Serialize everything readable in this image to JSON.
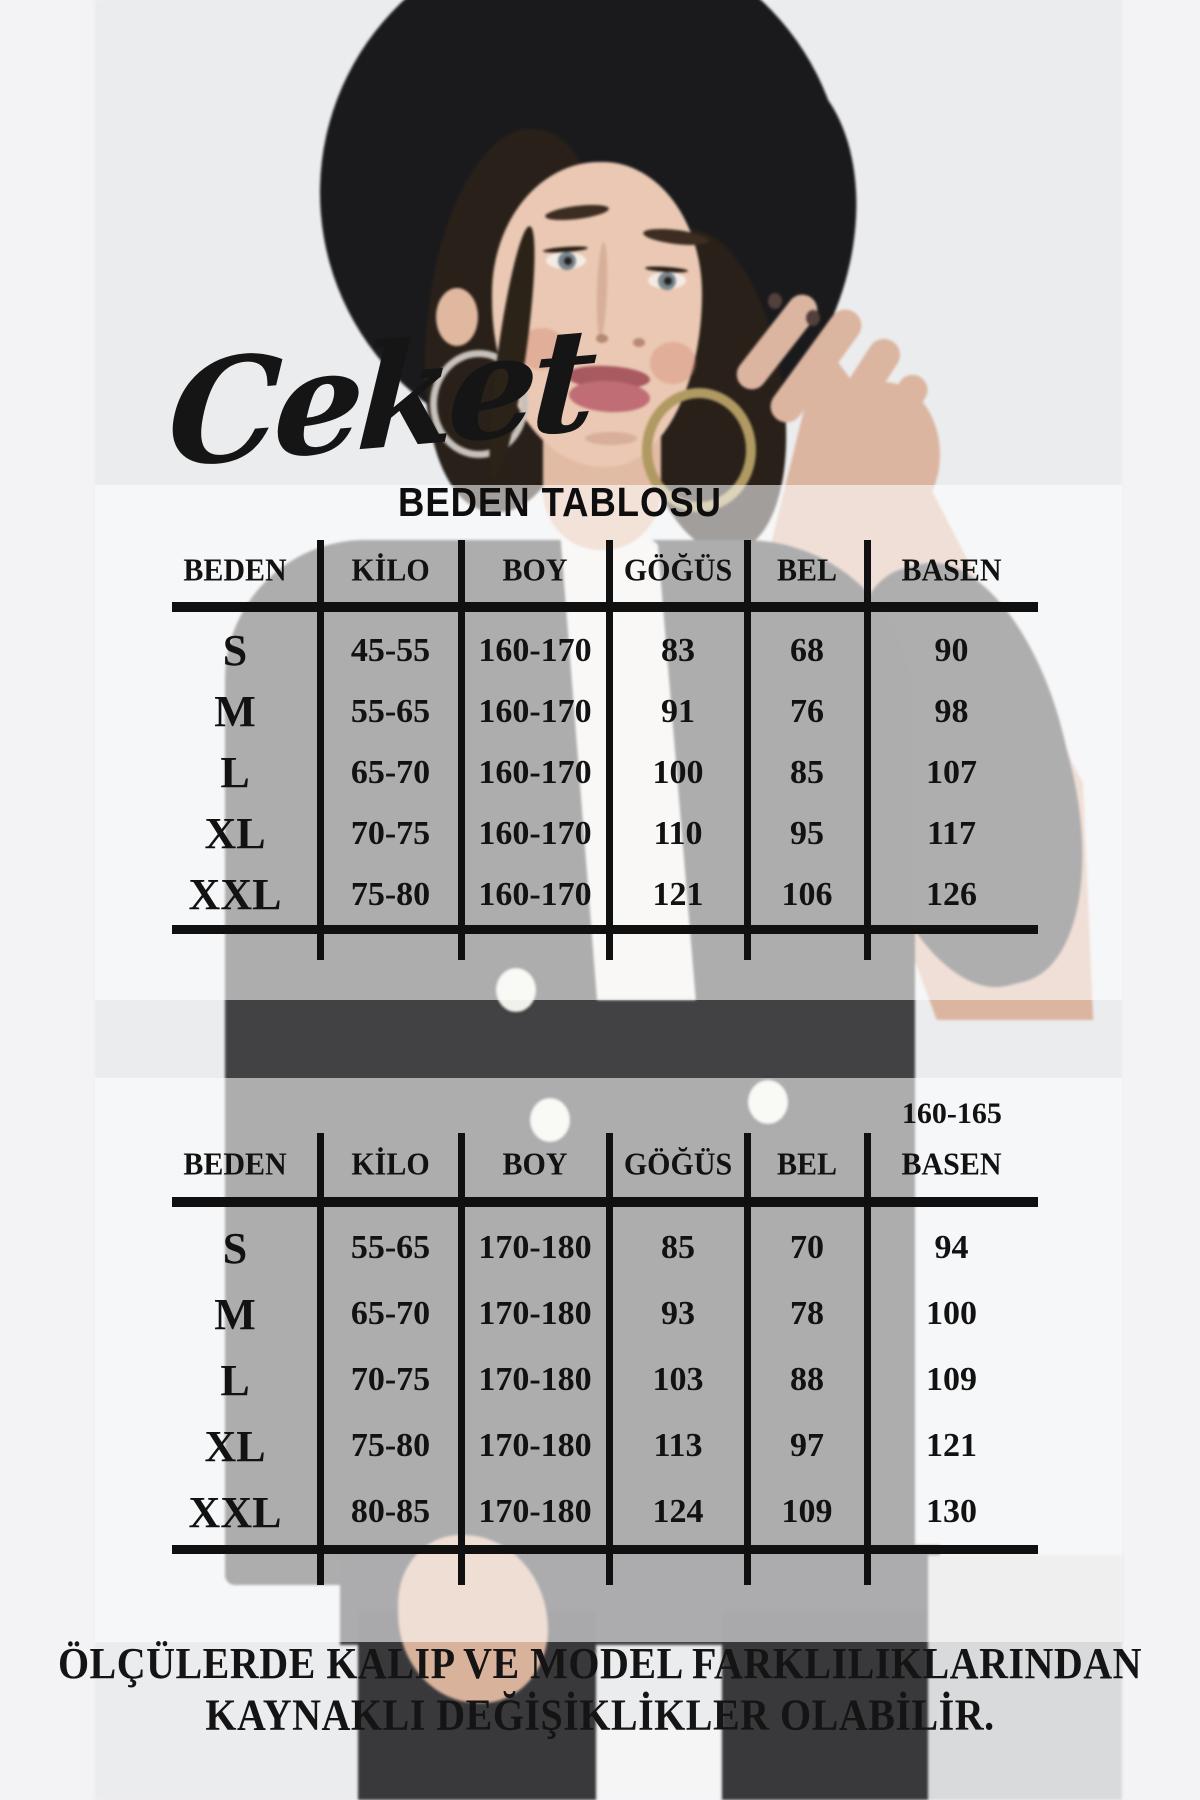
{
  "page": {
    "script_title": "Ceket",
    "main_title": "BEDEN TABLOSU",
    "disclaimer_lines": [
      "ÖLÇÜLERDE KALIP VE MODEL FARKLILIKLARINDAN",
      "KAYNAKLI DEĞİŞİKLİKLER OLABİLİR."
    ]
  },
  "tables": [
    {
      "name": "beden-tablosu-ust",
      "headers": [
        "BEDEN",
        "KİLO",
        "BOY",
        "GÖĞÜS",
        "BEL",
        "BASEN"
      ],
      "rows": [
        [
          "S",
          "45-55",
          "160-170",
          "83",
          "68",
          "90"
        ],
        [
          "M",
          "55-65",
          "160-170",
          "91",
          "76",
          "98"
        ],
        [
          "L",
          "65-70",
          "160-170",
          "100",
          "85",
          "107"
        ],
        [
          "XL",
          "70-75",
          "160-170",
          "110",
          "95",
          "117"
        ],
        [
          "XXL",
          "75-80",
          "160-170",
          "121",
          "106",
          "126"
        ]
      ]
    },
    {
      "name": "beden-tablosu-alt",
      "note": "160-165",
      "headers": [
        "BEDEN",
        "KİLO",
        "BOY",
        "GÖĞÜS",
        "BEL",
        "BASEN"
      ],
      "rows": [
        [
          "S",
          "55-65",
          "170-180",
          "85",
          "70",
          "94"
        ],
        [
          "M",
          "65-70",
          "170-180",
          "93",
          "78",
          "100"
        ],
        [
          "L",
          "70-75",
          "170-180",
          "103",
          "88",
          "109"
        ],
        [
          "XL",
          "75-80",
          "170-180",
          "113",
          "97",
          "121"
        ],
        [
          "XXL",
          "80-85",
          "170-180",
          "124",
          "109",
          "130"
        ]
      ]
    }
  ],
  "colors": {
    "ink": "#121212",
    "page_margin": "#f3f3f5",
    "photo_background": "#ebecee",
    "blazer": "#424244",
    "hat": "#1a1a1c",
    "skin": "#eac8b3",
    "lips": "#b4606a",
    "overlay": "rgba(255,255,255,0.57)"
  }
}
